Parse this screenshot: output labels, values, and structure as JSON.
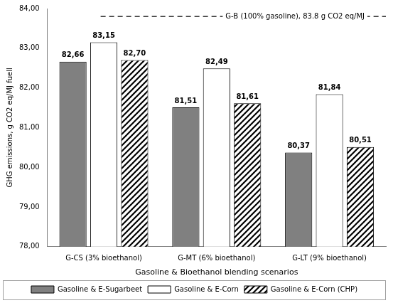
{
  "chart_data": {
    "type": "bar",
    "x_label": "Gasoline & Bioethanol blending scenarios",
    "y_label": "GHG emissions, g CO2 eq/MJ fuell",
    "categories": [
      "G-CS (3% bioethanol)",
      "G-MT (6% bioethanol)",
      "G-LT (9% bioethanol)"
    ],
    "series": [
      {
        "name": "Gasoline & E-Sugarbeet",
        "color": "#808080",
        "marker": "solid",
        "values": [
          82.66,
          81.51,
          80.37
        ],
        "value_labels": [
          "82,66",
          "81,51",
          "80,37"
        ]
      },
      {
        "name": "Gasoline & E-Corn",
        "color": "#ffffff",
        "marker": "solid",
        "values": [
          83.15,
          82.49,
          81.84
        ],
        "value_labels": [
          "83,15",
          "82,49",
          "81,84"
        ]
      },
      {
        "name": "Gasoline & E-Corn (CHP)",
        "color": "#000000",
        "marker": "hatch",
        "values": [
          82.7,
          81.61,
          80.51
        ],
        "value_labels": [
          "82,70",
          "81,61",
          "80,51"
        ]
      }
    ],
    "ylim": [
      78,
      84
    ],
    "yticks": [
      {
        "value": 78,
        "label": "78,00"
      },
      {
        "value": 79,
        "label": "79,00"
      },
      {
        "value": 80,
        "label": "80,00"
      },
      {
        "value": 81,
        "label": "81,00"
      },
      {
        "value": 82,
        "label": "82,00"
      },
      {
        "value": 83,
        "label": "83,00"
      },
      {
        "value": 84,
        "label": "84,00"
      }
    ],
    "annotations": [
      {
        "label": "G-B (100% gasoline), 83.8 g CO2 eq/MJ",
        "value": 83.8,
        "line_style": "dashed"
      }
    ],
    "grid": false,
    "legend": "bottom",
    "data_labels": true
  }
}
